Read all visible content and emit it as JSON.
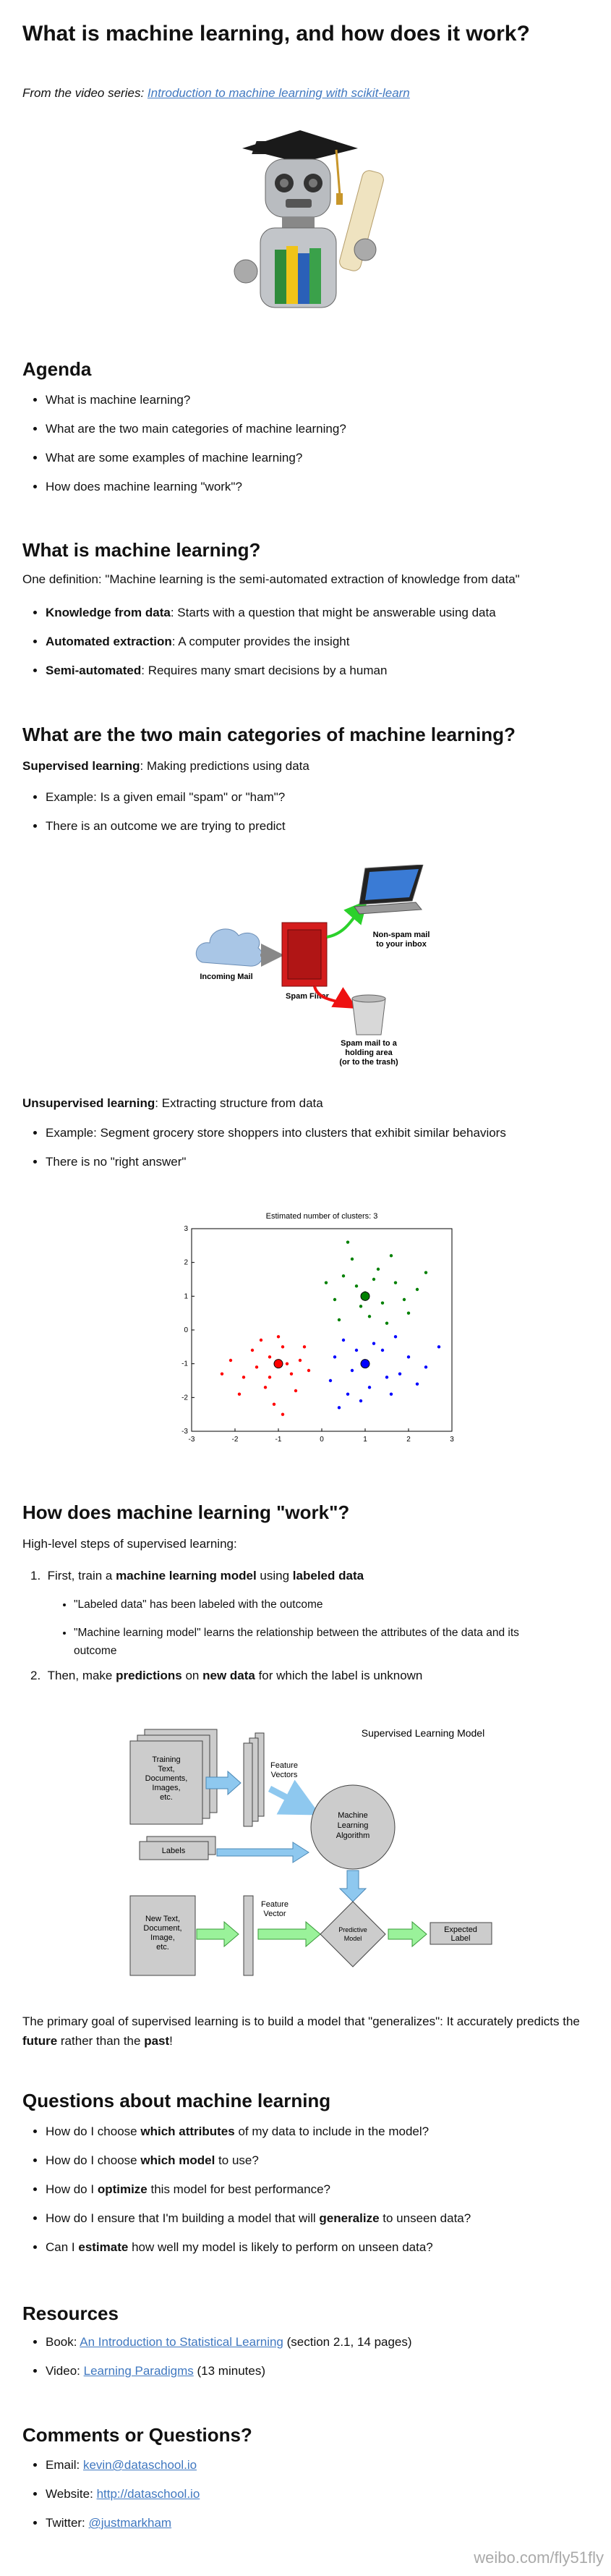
{
  "title": "What is machine learning, and how does it work?",
  "intro": {
    "prefix": "From the video series:",
    "link": "Introduction to machine learning with scikit-learn"
  },
  "agenda": {
    "heading": "Agenda",
    "items": [
      "What is machine learning?",
      "What are the two main categories of machine learning?",
      "What are some examples of machine learning?",
      "How does machine learning \"work\"?"
    ]
  },
  "what_is": {
    "heading": "What is machine learning?",
    "definition": "One definition: \"Machine learning is the semi-automated extraction of knowledge from data\"",
    "points": [
      {
        "term": "Knowledge from data",
        "text": ": Starts with a question that might be answerable using data"
      },
      {
        "term": "Automated extraction",
        "text": ": A computer provides the insight"
      },
      {
        "term": "Semi-automated",
        "text": ": Requires many smart decisions by a human"
      }
    ]
  },
  "categories": {
    "heading": "What are the two main categories of machine learning?",
    "supervised": {
      "term": "Supervised learning",
      "text": ": Making predictions using data",
      "items": [
        "Example: Is a given email \"spam\" or \"ham\"?",
        "There is an outcome we are trying to predict"
      ]
    },
    "spam_diagram": {
      "incoming": "Incoming Mail",
      "filter": "Spam Filter",
      "inbox": [
        "Non-spam mail",
        "to your inbox"
      ],
      "trash": [
        "Spam mail to a",
        "holding area",
        "(or to the trash)"
      ]
    },
    "unsupervised": {
      "term": "Unsupervised learning",
      "text": ": Extracting structure from data",
      "items": [
        "Example: Segment grocery store shoppers into clusters that exhibit similar behaviors",
        "There is no \"right answer\""
      ]
    }
  },
  "chart_data": {
    "type": "scatter",
    "title": "Estimated number of clusters: 3",
    "xlim": [
      -3,
      3
    ],
    "ylim": [
      -3,
      3
    ],
    "xticks": [
      -3,
      -2,
      -1,
      0,
      1,
      2,
      3
    ],
    "yticks": [
      -3,
      -2,
      -1,
      0,
      1,
      2,
      3
    ],
    "series": [
      {
        "color": "#ff0000",
        "center": {
          "x": -1,
          "y": -1
        },
        "x": [
          -1.2,
          -0.7,
          -1.5,
          -0.9,
          -1.8,
          -0.5,
          -1.3,
          -1.0,
          -2.1,
          -0.6,
          -1.6,
          -0.3,
          -1.1,
          -1.9,
          -0.8,
          -1.4,
          -2.3,
          -0.4,
          -1.2,
          -0.9
        ],
        "y": [
          -0.8,
          -1.3,
          -1.1,
          -0.5,
          -1.4,
          -0.9,
          -1.7,
          -0.2,
          -0.9,
          -1.8,
          -0.6,
          -1.2,
          -2.2,
          -1.9,
          -1.0,
          -0.3,
          -1.3,
          -0.5,
          -1.4,
          -2.5
        ]
      },
      {
        "color": "#008000",
        "center": {
          "x": 1,
          "y": 1
        },
        "x": [
          0.8,
          1.4,
          0.5,
          1.7,
          1.1,
          0.3,
          1.9,
          0.7,
          1.3,
          2.2,
          0.9,
          0.1,
          1.6,
          1.0,
          0.4,
          2.0,
          1.2,
          0.6,
          1.5,
          2.4
        ],
        "y": [
          1.3,
          0.8,
          1.6,
          1.4,
          0.4,
          0.9,
          0.9,
          2.1,
          1.8,
          1.2,
          0.7,
          1.4,
          2.2,
          1.1,
          0.3,
          0.5,
          1.5,
          2.6,
          0.2,
          1.7
        ]
      },
      {
        "color": "#0000ff",
        "center": {
          "x": 1,
          "y": -1
        },
        "x": [
          0.7,
          1.4,
          0.3,
          1.8,
          1.1,
          0.5,
          2.0,
          0.9,
          1.6,
          2.4,
          0.2,
          1.2,
          1.7,
          0.6,
          1.0,
          2.2,
          0.4,
          1.5,
          2.7,
          0.8
        ],
        "y": [
          -1.2,
          -0.6,
          -0.8,
          -1.3,
          -1.7,
          -0.3,
          -0.8,
          -2.1,
          -1.9,
          -1.1,
          -1.5,
          -0.4,
          -0.2,
          -1.9,
          -1.0,
          -1.6,
          -2.3,
          -1.4,
          -0.5,
          -0.6
        ]
      }
    ]
  },
  "work": {
    "heading": "How does machine learning \"work\"?",
    "intro": "High-level steps of supervised learning:",
    "step1": [
      "First, train a ",
      "machine learning model",
      " using ",
      "labeled data"
    ],
    "step1_notes": [
      "\"Labeled data\" has been labeled with the outcome",
      "\"Machine learning model\" learns the relationship between the attributes of the data and its outcome"
    ],
    "step2": [
      "Then, make ",
      "predictions",
      " on ",
      "new data",
      " for which the label is unknown"
    ],
    "diagram": {
      "title": "Supervised Learning Model",
      "training": [
        "Training",
        "Text,",
        "Documents,",
        "Images,",
        "etc."
      ],
      "feature_vectors": [
        "Feature",
        "Vectors"
      ],
      "algorithm": [
        "Machine",
        "Learning",
        "Algorithm"
      ],
      "labels": "Labels",
      "new_data": [
        "New Text,",
        "Document,",
        "Image,",
        "etc."
      ],
      "feature_vector": [
        "Feature",
        "Vector"
      ],
      "model": [
        "Predictive",
        "Model"
      ],
      "expected": [
        "Expected",
        "Label"
      ]
    },
    "goal": [
      "The primary goal of supervised learning is to build a model that \"generalizes\": It accurately predicts the ",
      "future",
      " rather than the ",
      "past",
      "!"
    ]
  },
  "questions": {
    "heading": "Questions about machine learning",
    "items": [
      [
        "How do I choose ",
        "which attributes",
        " of my data to include in the model?"
      ],
      [
        "How do I choose ",
        "which model",
        " to use?"
      ],
      [
        "How do I ",
        "optimize",
        " this model for best performance?"
      ],
      [
        "How do I ensure that I'm building a model that will ",
        "generalize",
        " to unseen data?"
      ],
      [
        "Can I ",
        "estimate",
        " how well my model is likely to perform on unseen data?"
      ]
    ]
  },
  "resources": {
    "heading": "Resources",
    "items": [
      [
        "Book: ",
        "An Introduction to Statistical Learning",
        " (section 2.1, 14 pages)"
      ],
      [
        "Video: ",
        "Learning Paradigms",
        " (13 minutes)"
      ]
    ]
  },
  "comments": {
    "heading": "Comments or Questions?",
    "items": [
      [
        "Email: ",
        "kevin@dataschool.io"
      ],
      [
        "Website: ",
        "http://dataschool.io"
      ],
      [
        "Twitter: ",
        "@justmarkham"
      ]
    ]
  },
  "watermark": "weibo.com/fly51fly"
}
